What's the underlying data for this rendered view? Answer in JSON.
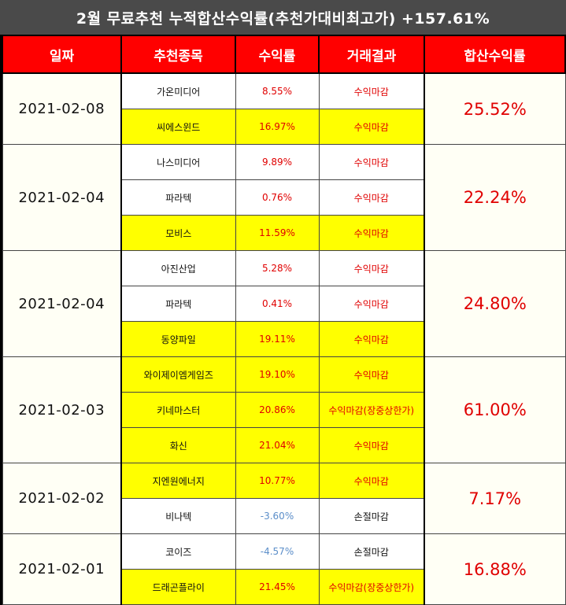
{
  "title": "2월 무료추천 누적합산수익률(추천가대비최고가) +157.61%",
  "headers": [
    "일짜",
    "추천종목",
    "수익률",
    "거래결과",
    "합산수익률"
  ],
  "groups": [
    {
      "date": "2021-02-08",
      "total": "25.52%",
      "rows": [
        {
          "name": "가온미디어",
          "rate": "8.55%",
          "result": "수익마감",
          "hl": false
        },
        {
          "name": "씨에스윈드",
          "rate": "16.97%",
          "result": "수익마감",
          "hl": true
        }
      ]
    },
    {
      "date": "2021-02-04",
      "total": "22.24%",
      "rows": [
        {
          "name": "나스미디어",
          "rate": "9.89%",
          "result": "수익마감",
          "hl": false
        },
        {
          "name": "파라텍",
          "rate": "0.76%",
          "result": "수익마감",
          "hl": false
        },
        {
          "name": "모비스",
          "rate": "11.59%",
          "result": "수익마감",
          "hl": true
        }
      ]
    },
    {
      "date": "2021-02-04",
      "total": "24.80%",
      "rows": [
        {
          "name": "아진산업",
          "rate": "5.28%",
          "result": "수익마감",
          "hl": false
        },
        {
          "name": "파라텍",
          "rate": "0.41%",
          "result": "수익마감",
          "hl": false
        },
        {
          "name": "동양파일",
          "rate": "19.11%",
          "result": "수익마감",
          "hl": true
        }
      ]
    },
    {
      "date": "2021-02-03",
      "total": "61.00%",
      "rows": [
        {
          "name": "와이제이엠게임즈",
          "rate": "19.10%",
          "result": "수익마감",
          "hl": true
        },
        {
          "name": "키네마스터",
          "rate": "20.86%",
          "result": "수익마감(장중상한가)",
          "hl": true
        },
        {
          "name": "화신",
          "rate": "21.04%",
          "result": "수익마감",
          "hl": true
        }
      ]
    },
    {
      "date": "2021-02-02",
      "total": "7.17%",
      "rows": [
        {
          "name": "지엔원에너지",
          "rate": "10.77%",
          "result": "수익마감",
          "hl": true
        },
        {
          "name": "비나텍",
          "rate": "-3.60%",
          "result": "손절마감",
          "hl": false,
          "loss": true
        }
      ]
    },
    {
      "date": "2021-02-01",
      "total": "16.88%",
      "rows": [
        {
          "name": "코이즈",
          "rate": "-4.57%",
          "result": "손절마감",
          "hl": false,
          "loss": true
        },
        {
          "name": "드래곤플라이",
          "rate": "21.45%",
          "result": "수익마감(장중상한가)",
          "hl": true
        }
      ]
    }
  ]
}
